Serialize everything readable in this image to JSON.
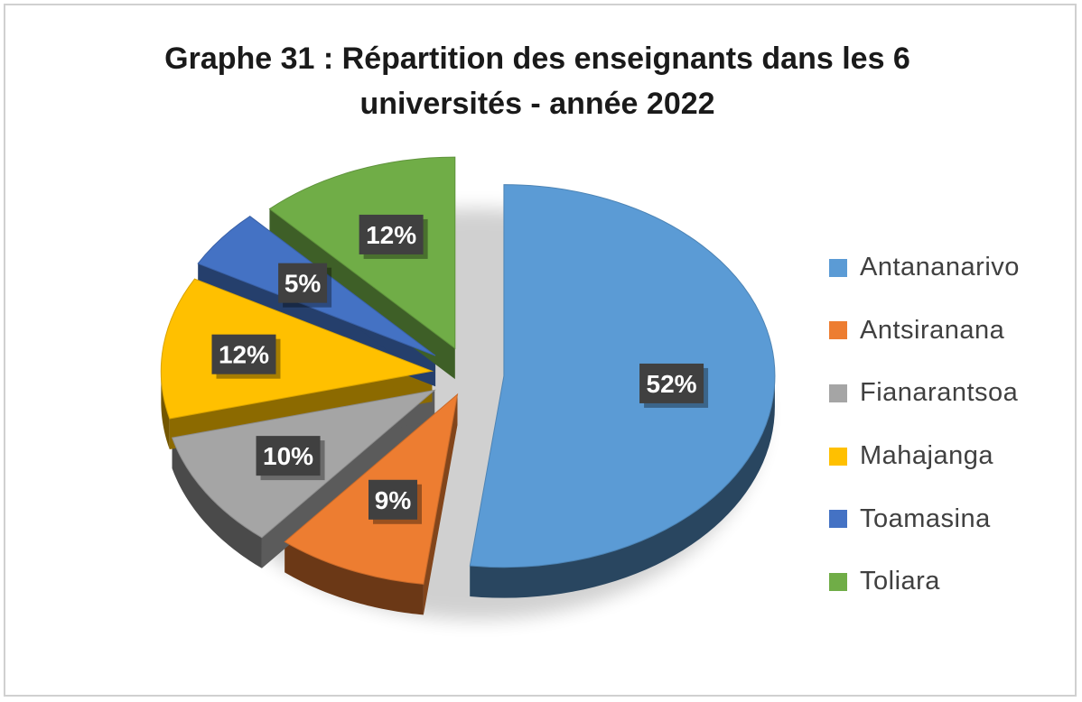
{
  "chart_data": {
    "type": "pie",
    "title": "Graphe 31 : Répartition des enseignants dans les 6 universités - année 2022",
    "title_lines": [
      "Graphe 31 : Répartition des enseignants dans les 6",
      "universités - année 2022"
    ],
    "legend_position": "right",
    "categories": [
      "Antananarivo",
      "Antsiranana",
      "Fianarantsoa",
      "Mahajanga",
      "Toamasina",
      "Toliara"
    ],
    "values": [
      52,
      9,
      10,
      12,
      5,
      12
    ],
    "data_labels": [
      "52%",
      "9%",
      "10%",
      "12%",
      "5%",
      "12%"
    ],
    "colors": [
      "#5b9bd5",
      "#ed7d31",
      "#a5a5a5",
      "#ffc000",
      "#4472c4",
      "#70ad47"
    ],
    "exploded": true,
    "style": "3d"
  }
}
